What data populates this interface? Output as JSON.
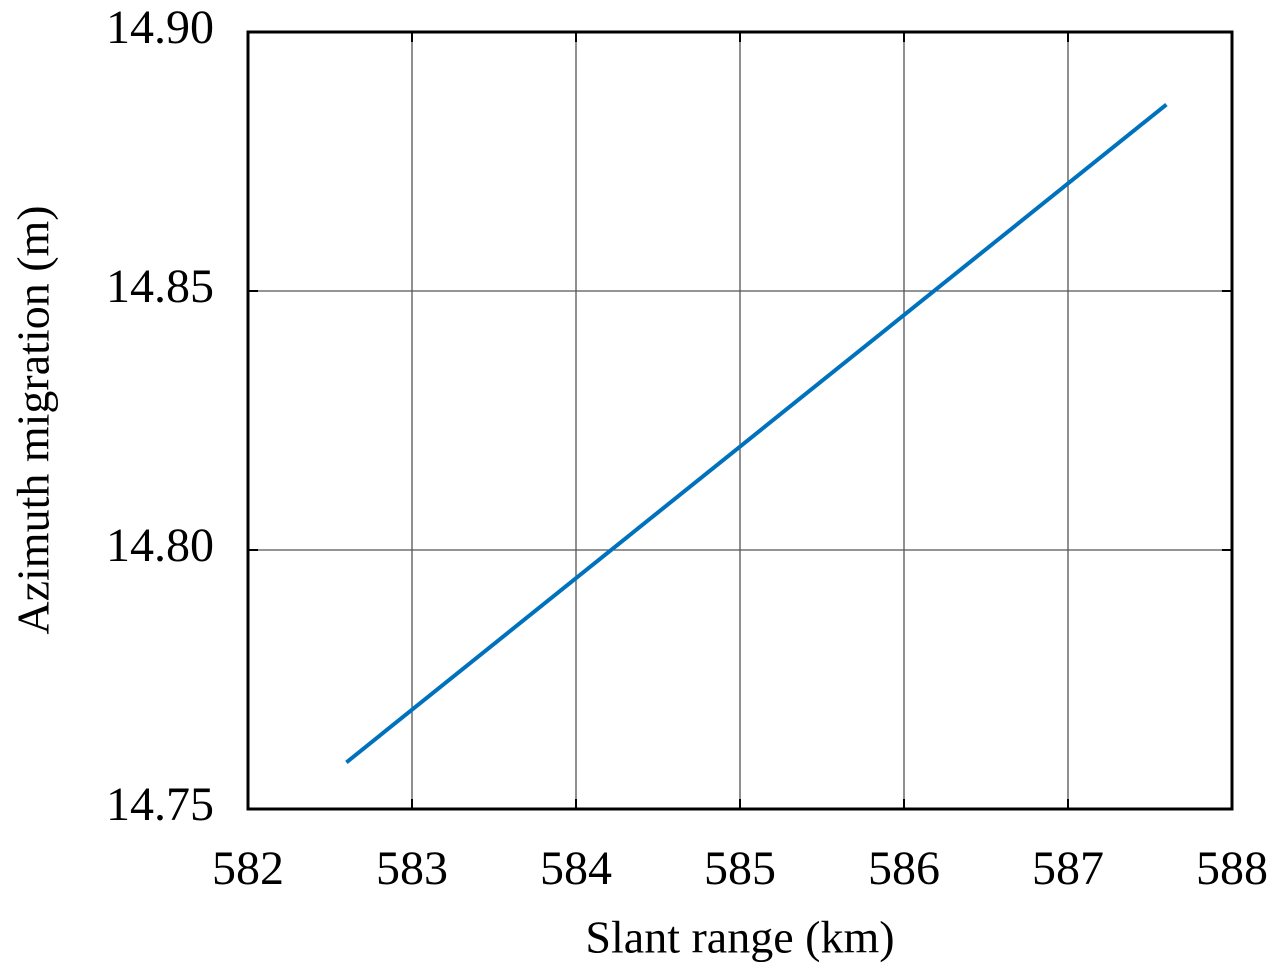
{
  "chart_data": {
    "type": "line",
    "xlabel": "Slant range (km)",
    "ylabel": "Azimuth migration (m)",
    "x": [
      582.6,
      587.6
    ],
    "series": [
      {
        "color": "#0072bd",
        "values": [
          14.759,
          14.886
        ]
      }
    ],
    "xlim": [
      582,
      588
    ],
    "xticks": [
      582,
      583,
      584,
      585,
      586,
      587,
      588
    ],
    "ylim": [
      14.75,
      14.9
    ],
    "yticks": [
      {
        "value": 14.75,
        "label": "14.75"
      },
      {
        "value": 14.8,
        "label": "14.80"
      },
      14.85,
      {
        "value": 14.9,
        "label": "14.90"
      }
    ],
    "grid": true
  }
}
